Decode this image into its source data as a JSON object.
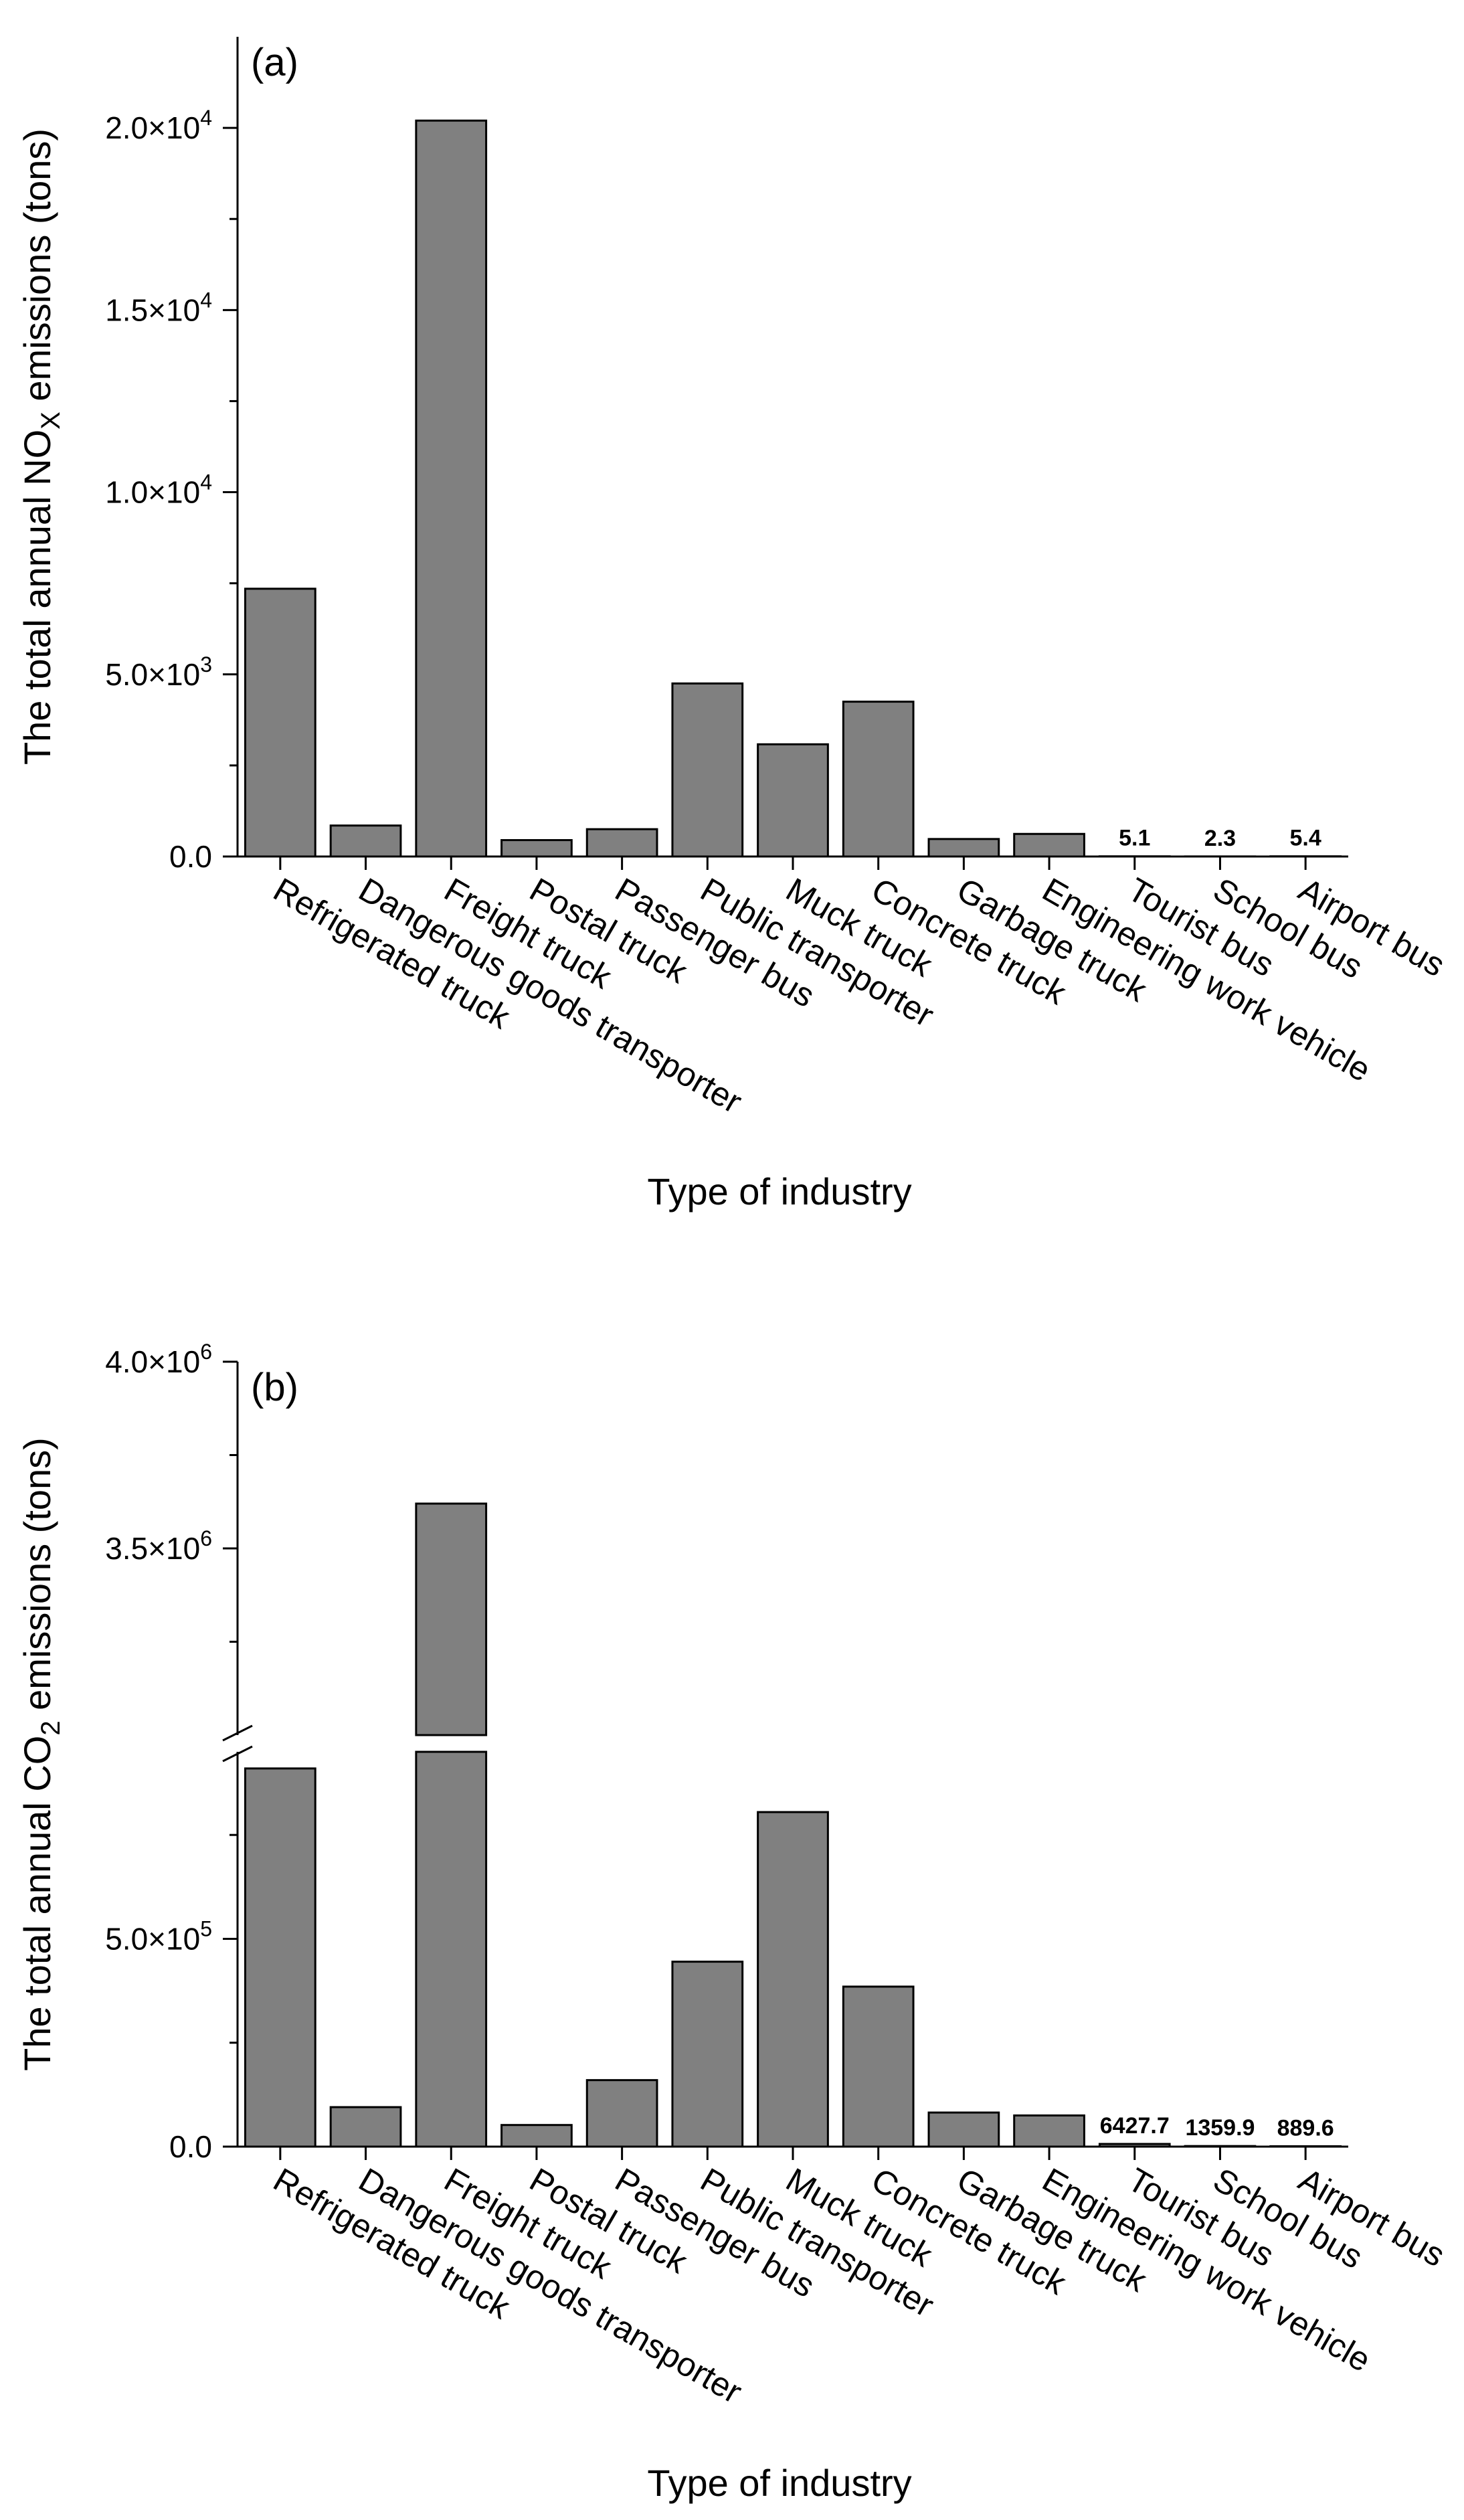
{
  "chart_data": [
    {
      "type": "bar",
      "panel_label": "(a)",
      "xlabel": "Type of industry",
      "ylabel_parts": [
        "The total annual NO",
        "X",
        " emissions (tons)"
      ],
      "categories": [
        "Refrigerated truck",
        "Dangerous goods transporter",
        "Freight truck",
        "Postal truck",
        "Passenger bus",
        "Public transporter",
        "Muck truck",
        "Concrete truck",
        "Garbage truck",
        "Engineering work vehicle",
        "Tourist bus",
        "School bus",
        "Airport bus"
      ],
      "values": [
        7350,
        850,
        20200,
        450,
        750,
        4750,
        3080,
        4250,
        480,
        620,
        5.1,
        2.3,
        5.4
      ],
      "data_labels": [
        "",
        "",
        "",
        "",
        "",
        "",
        "",
        "",
        "",
        "",
        "5.1",
        "2.3",
        "5.4"
      ],
      "ylim": [
        0,
        22500
      ],
      "ytick_values": [
        0,
        5000,
        10000,
        15000,
        20000
      ],
      "ytick_labels": [
        [
          "0.0",
          ""
        ],
        [
          "5.0×10",
          "3"
        ],
        [
          "1.0×10",
          "4"
        ],
        [
          "1.5×10",
          "4"
        ],
        [
          "2.0×10",
          "4"
        ]
      ]
    },
    {
      "type": "bar",
      "panel_label": "(b)",
      "xlabel": "Type of industry",
      "ylabel_parts": [
        "The total annual CO",
        "2",
        " emissions (tons)"
      ],
      "categories": [
        "Refrigerated truck",
        "Dangerous goods transporter",
        "Freight truck",
        "Postal truck",
        "Passenger bus",
        "Public transporter",
        "Muck truck",
        "Concrete truck",
        "Garbage truck",
        "Engineering work vehicle",
        "Tourist bus",
        "School bus",
        "Airport bus"
      ],
      "values": [
        910000,
        95000,
        3620000,
        52000,
        160000,
        445000,
        805000,
        385000,
        82000,
        75000,
        6427.7,
        1359.9,
        889.6
      ],
      "data_labels": [
        "",
        "",
        "",
        "",
        "",
        "",
        "",
        "",
        "",
        "",
        "6427.7",
        "1359.9",
        "889.6"
      ],
      "axis_break": {
        "lower_range": [
          0,
          950000
        ],
        "upper_range": [
          3000000,
          4000000
        ]
      },
      "ytick_values": [
        0,
        500000,
        3500000,
        4000000
      ],
      "ytick_labels": [
        [
          "0.0",
          ""
        ],
        [
          "5.0×10",
          "5"
        ],
        [
          "3.5×10",
          "6"
        ],
        [
          "4.0×10",
          "6"
        ]
      ]
    }
  ]
}
